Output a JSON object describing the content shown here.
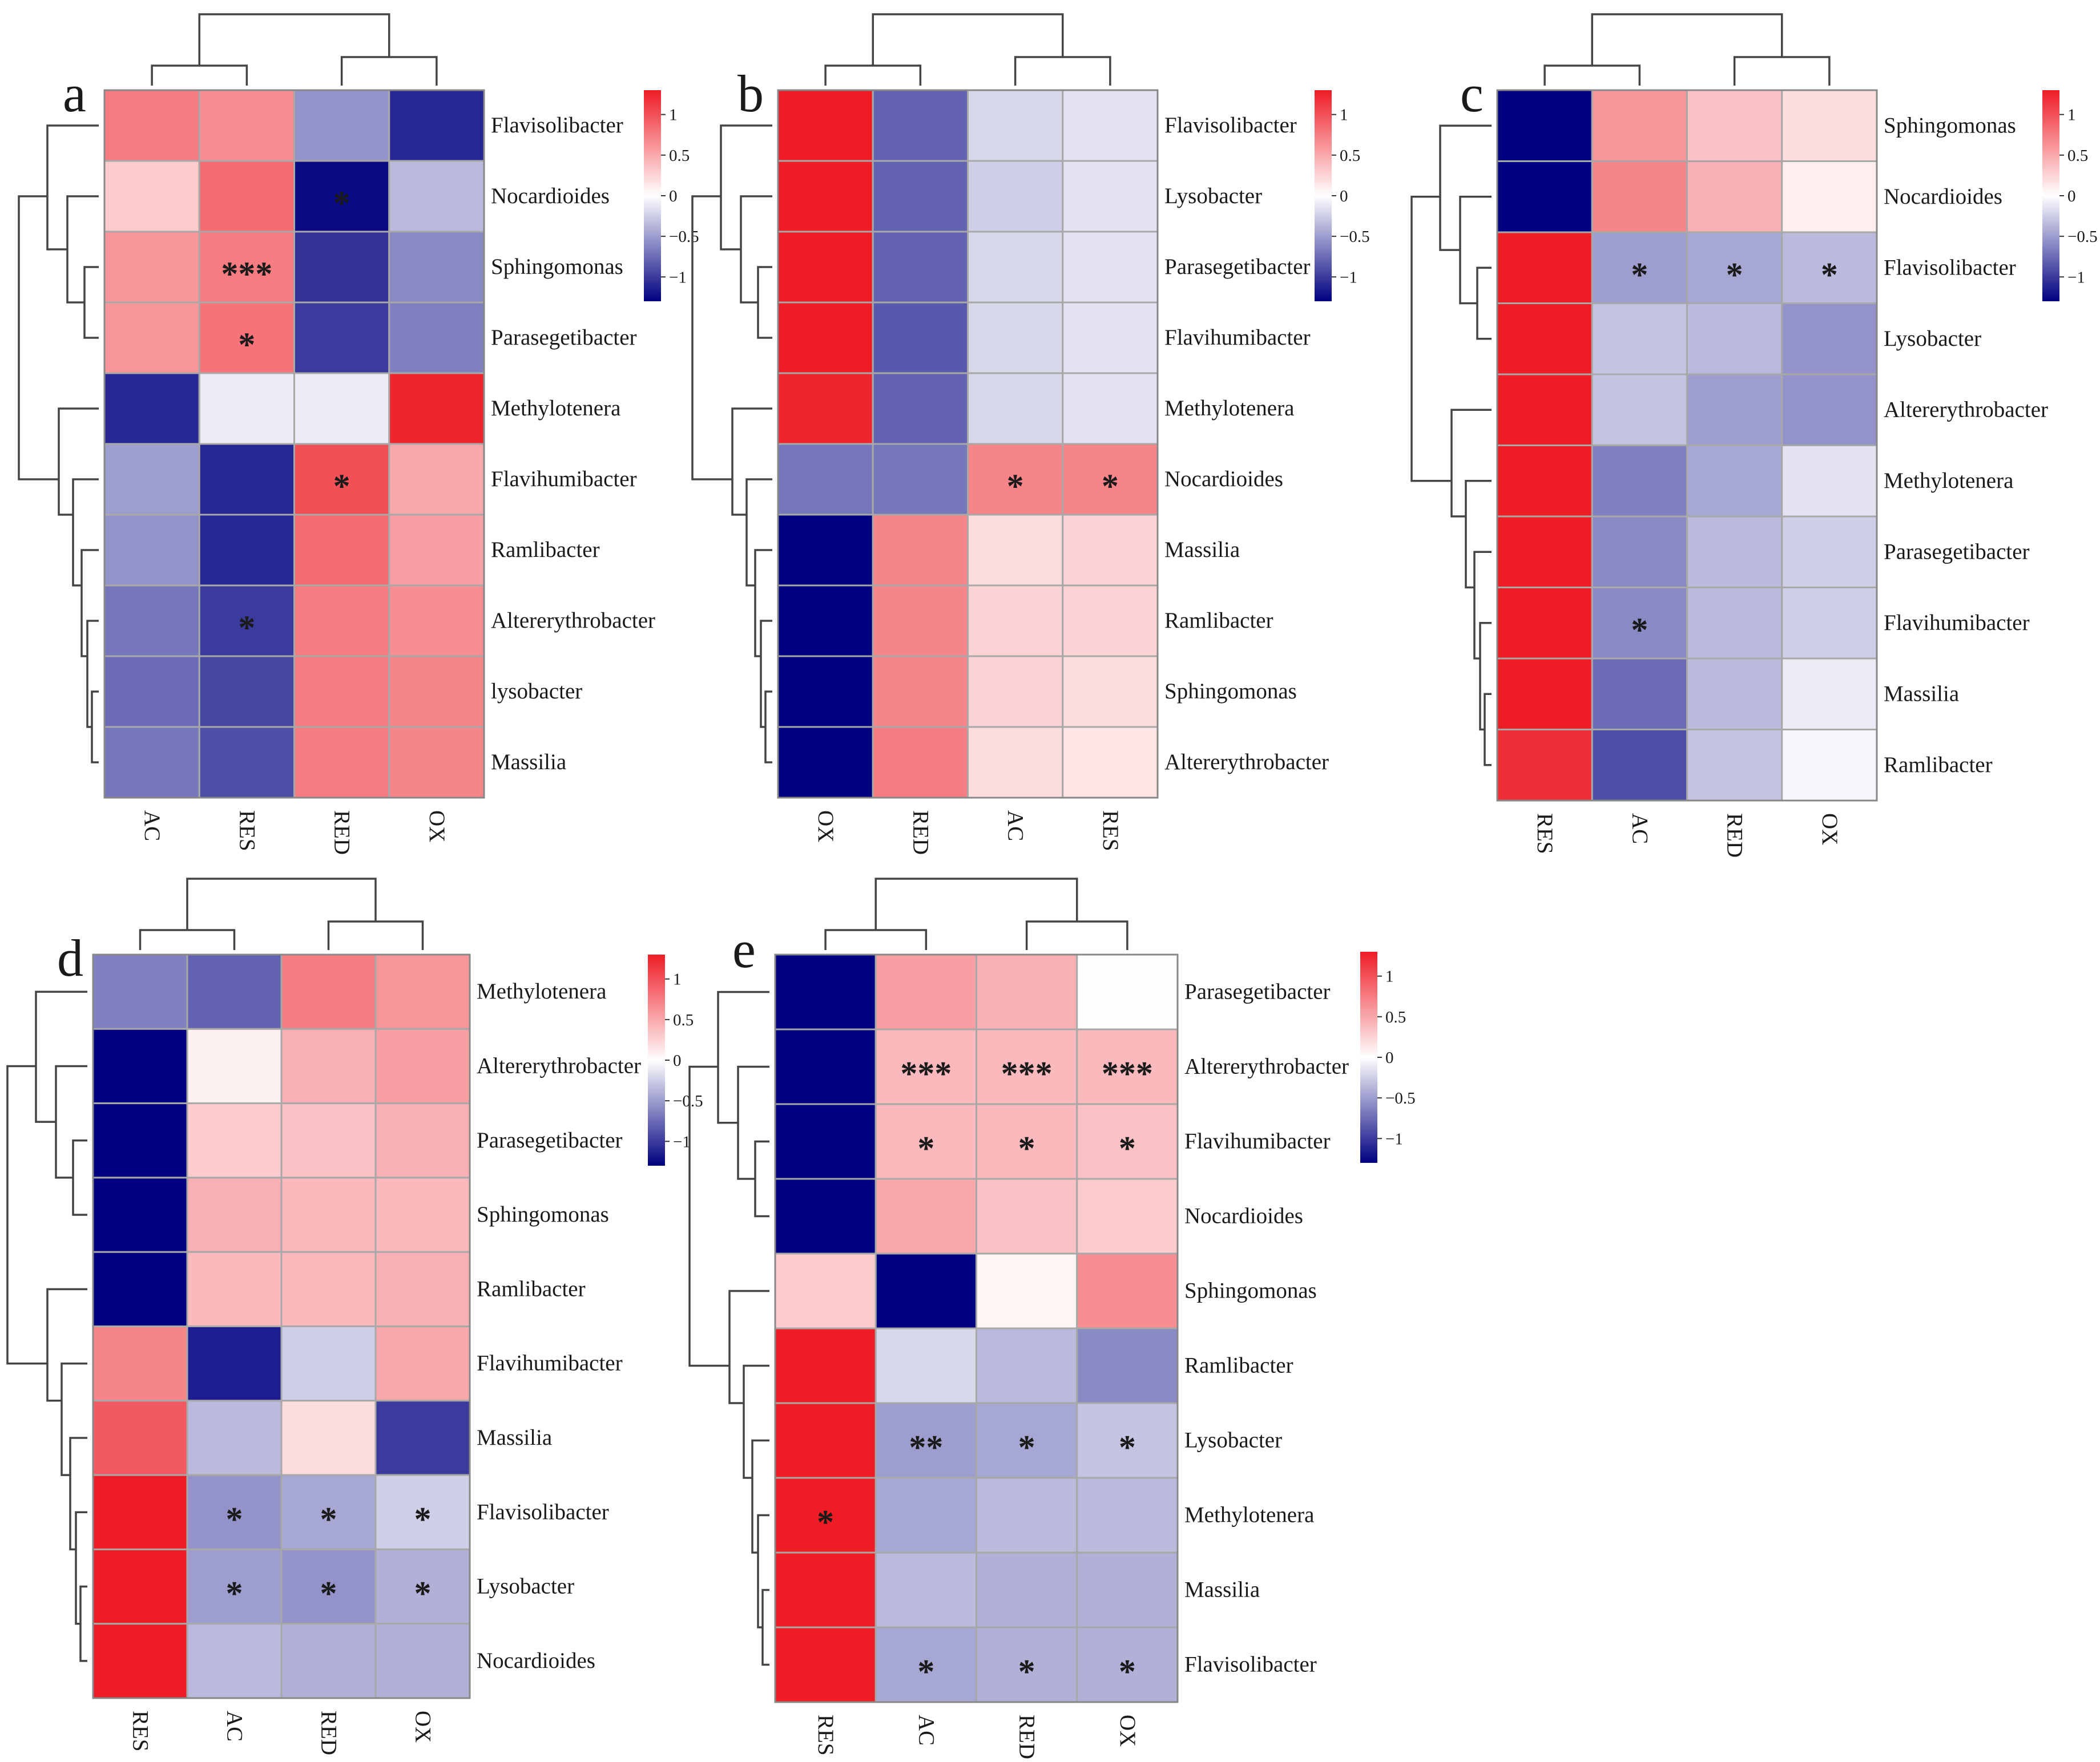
{
  "colorbar": {
    "ticks": [
      "1",
      "0.5",
      "0",
      "−0.5",
      "−1"
    ],
    "tick_values": [
      1,
      0.5,
      0,
      -0.5,
      -1
    ],
    "low_color": "#000080",
    "mid_color": "#ffffff",
    "high_color": "#ee1c25"
  },
  "chart_data": [
    {
      "type": "heatmap",
      "panel": "a",
      "columns": [
        "AC",
        "RES",
        "RED",
        "OX"
      ],
      "rows": [
        "Flavisolibacter",
        "Nocardioides",
        "Sphingomonas",
        "Parasegetibacter",
        "Methylotenera",
        "Flavihumibacter",
        "Ramlibacter",
        "Altererythrobacter",
        "lysobacter",
        "Massilia"
      ],
      "values": [
        [
          0.75,
          0.65,
          -0.55,
          -1.1
        ],
        [
          0.3,
          0.85,
          -1.25,
          -0.35
        ],
        [
          0.6,
          0.75,
          -1.05,
          -0.6
        ],
        [
          0.6,
          0.8,
          -1.0,
          -0.65
        ],
        [
          -1.1,
          -0.1,
          -0.1,
          1.25
        ],
        [
          -0.5,
          -1.1,
          1.0,
          0.5
        ],
        [
          -0.55,
          -1.1,
          0.85,
          0.55
        ],
        [
          -0.7,
          -1.0,
          0.75,
          0.65
        ],
        [
          -0.75,
          -0.95,
          0.75,
          0.7
        ],
        [
          -0.7,
          -0.9,
          0.75,
          0.7
        ]
      ],
      "stars": [
        [
          "",
          "",
          "",
          ""
        ],
        [
          "",
          "",
          "*",
          ""
        ],
        [
          "",
          "***",
          "",
          ""
        ],
        [
          "",
          "*",
          "",
          ""
        ],
        [
          "",
          "",
          "",
          ""
        ],
        [
          "",
          "",
          "*",
          ""
        ],
        [
          "",
          "",
          "",
          ""
        ],
        [
          "",
          "*",
          "",
          ""
        ],
        [
          "",
          "",
          "",
          ""
        ],
        [
          "",
          "",
          "",
          ""
        ]
      ],
      "legend_range": [
        -1.3,
        1.3
      ]
    },
    {
      "type": "heatmap",
      "panel": "b",
      "columns": [
        "OX",
        "RED",
        "AC",
        "RES"
      ],
      "rows": [
        "Flavisolibacter",
        "Lysobacter",
        "Parasegetibacter",
        "Flavihumibacter",
        "Methylotenera",
        "Nocardioides",
        "Massilia",
        "Ramlibacter",
        "Sphingomonas",
        "Altererythrobacter"
      ],
      "values": [
        [
          1.3,
          -0.8,
          -0.2,
          -0.15
        ],
        [
          1.3,
          -0.8,
          -0.25,
          -0.15
        ],
        [
          1.3,
          -0.8,
          -0.2,
          -0.15
        ],
        [
          1.3,
          -0.85,
          -0.2,
          -0.15
        ],
        [
          1.25,
          -0.8,
          -0.2,
          -0.15
        ],
        [
          -0.7,
          -0.7,
          0.7,
          0.7
        ],
        [
          -1.3,
          0.7,
          0.2,
          0.25
        ],
        [
          -1.3,
          0.7,
          0.25,
          0.25
        ],
        [
          -1.3,
          0.7,
          0.25,
          0.2
        ],
        [
          -1.3,
          0.75,
          0.2,
          0.15
        ]
      ],
      "stars": [
        [
          "",
          "",
          "",
          ""
        ],
        [
          "",
          "",
          "",
          ""
        ],
        [
          "",
          "",
          "",
          ""
        ],
        [
          "",
          "",
          "",
          ""
        ],
        [
          "",
          "",
          "",
          ""
        ],
        [
          "",
          "",
          "*",
          "*"
        ],
        [
          "",
          "",
          "",
          ""
        ],
        [
          "",
          "",
          "",
          ""
        ],
        [
          "",
          "",
          "",
          ""
        ],
        [
          "",
          "",
          "",
          ""
        ]
      ],
      "legend_range": [
        -1.3,
        1.3
      ]
    },
    {
      "type": "heatmap",
      "panel": "c",
      "columns": [
        "RES",
        "AC",
        "RED",
        "OX"
      ],
      "rows": [
        "Sphingomonas",
        "Nocardioides",
        "Flavisolibacter",
        "Lysobacter",
        "Altererythrobacter",
        "Methylotenera",
        "Parasegetibacter",
        "Flavihumibacter",
        "Massilia",
        "Ramlibacter"
      ],
      "values": [
        [
          -1.5,
          0.6,
          0.35,
          0.2
        ],
        [
          -1.5,
          0.7,
          0.45,
          0.1
        ],
        [
          1.3,
          -0.5,
          -0.45,
          -0.35
        ],
        [
          1.3,
          -0.3,
          -0.35,
          -0.55
        ],
        [
          1.3,
          -0.3,
          -0.5,
          -0.55
        ],
        [
          1.3,
          -0.65,
          -0.45,
          -0.15
        ],
        [
          1.3,
          -0.6,
          -0.35,
          -0.25
        ],
        [
          1.3,
          -0.6,
          -0.35,
          -0.25
        ],
        [
          1.3,
          -0.75,
          -0.35,
          -0.1
        ],
        [
          1.2,
          -0.9,
          -0.3,
          -0.05
        ]
      ],
      "stars": [
        [
          "",
          "",
          "",
          ""
        ],
        [
          "",
          "",
          "",
          ""
        ],
        [
          "",
          "*",
          "*",
          "*"
        ],
        [
          "",
          "",
          "",
          ""
        ],
        [
          "",
          "",
          "",
          ""
        ],
        [
          "",
          "",
          "",
          ""
        ],
        [
          "",
          "",
          "",
          ""
        ],
        [
          "",
          "*",
          "",
          ""
        ],
        [
          "",
          "",
          "",
          ""
        ],
        [
          "",
          "",
          "",
          ""
        ]
      ],
      "legend_range": [
        -1.3,
        1.3
      ]
    },
    {
      "type": "heatmap",
      "panel": "d",
      "columns": [
        "RES",
        "AC",
        "RED",
        "OX"
      ],
      "rows": [
        "Methylotenera",
        "Altererythrobacter",
        "Parasegetibacter",
        "Sphingomonas",
        "Ramlibacter",
        "Flavihumibacter",
        "Massilia",
        "Flavisolibacter",
        "Lysobacter",
        "Nocardioides"
      ],
      "values": [
        [
          -0.65,
          -0.8,
          0.75,
          0.6
        ],
        [
          -1.5,
          0.08,
          0.45,
          0.55
        ],
        [
          -1.5,
          0.3,
          0.35,
          0.45
        ],
        [
          -1.5,
          0.45,
          0.4,
          0.4
        ],
        [
          -1.5,
          0.4,
          0.4,
          0.45
        ],
        [
          0.7,
          -1.15,
          -0.25,
          0.5
        ],
        [
          0.95,
          -0.35,
          0.2,
          -1.0
        ],
        [
          1.3,
          -0.55,
          -0.45,
          -0.25
        ],
        [
          1.3,
          -0.5,
          -0.55,
          -0.4
        ],
        [
          1.3,
          -0.35,
          -0.4,
          -0.4
        ]
      ],
      "stars": [
        [
          "",
          "",
          "",
          ""
        ],
        [
          "",
          "",
          "",
          ""
        ],
        [
          "",
          "",
          "",
          ""
        ],
        [
          "",
          "",
          "",
          ""
        ],
        [
          "",
          "",
          "",
          ""
        ],
        [
          "",
          "",
          "",
          ""
        ],
        [
          "",
          "",
          "",
          ""
        ],
        [
          "",
          "*",
          "*",
          "*"
        ],
        [
          "",
          "*",
          "*",
          "*"
        ],
        [
          "",
          "",
          "",
          ""
        ]
      ],
      "legend_range": [
        -1.3,
        1.3
      ]
    },
    {
      "type": "heatmap",
      "panel": "e",
      "columns": [
        "RES",
        "AC",
        "RED",
        "OX"
      ],
      "rows": [
        "Parasegetibacter",
        "Altererythrobacter",
        "Flavihumibacter",
        "Nocardioides",
        "Sphingomonas",
        "Ramlibacter",
        "Lysobacter",
        "Methylotenera",
        "Massilia",
        "Flavisolibacter"
      ],
      "values": [
        [
          -1.5,
          0.55,
          0.45,
          0.02
        ],
        [
          -1.5,
          0.4,
          0.4,
          0.4
        ],
        [
          -1.5,
          0.4,
          0.4,
          0.35
        ],
        [
          -1.5,
          0.5,
          0.35,
          0.3
        ],
        [
          0.3,
          -1.5,
          0.06,
          0.65
        ],
        [
          1.3,
          -0.2,
          -0.35,
          -0.6
        ],
        [
          1.3,
          -0.5,
          -0.45,
          -0.3
        ],
        [
          1.3,
          -0.45,
          -0.35,
          -0.35
        ],
        [
          1.3,
          -0.35,
          -0.4,
          -0.4
        ],
        [
          1.3,
          -0.45,
          -0.4,
          -0.4
        ]
      ],
      "stars": [
        [
          "",
          "",
          "",
          ""
        ],
        [
          "",
          "***",
          "***",
          "***"
        ],
        [
          "",
          "*",
          "*",
          "*"
        ],
        [
          "",
          "",
          "",
          ""
        ],
        [
          "",
          "",
          "",
          ""
        ],
        [
          "",
          "",
          "",
          ""
        ],
        [
          "",
          "**",
          "*",
          "*"
        ],
        [
          "*",
          "",
          "",
          ""
        ],
        [
          "",
          "",
          "",
          ""
        ],
        [
          "",
          "*",
          "*",
          "*"
        ]
      ],
      "legend_range": [
        -1.3,
        1.3
      ]
    }
  ]
}
